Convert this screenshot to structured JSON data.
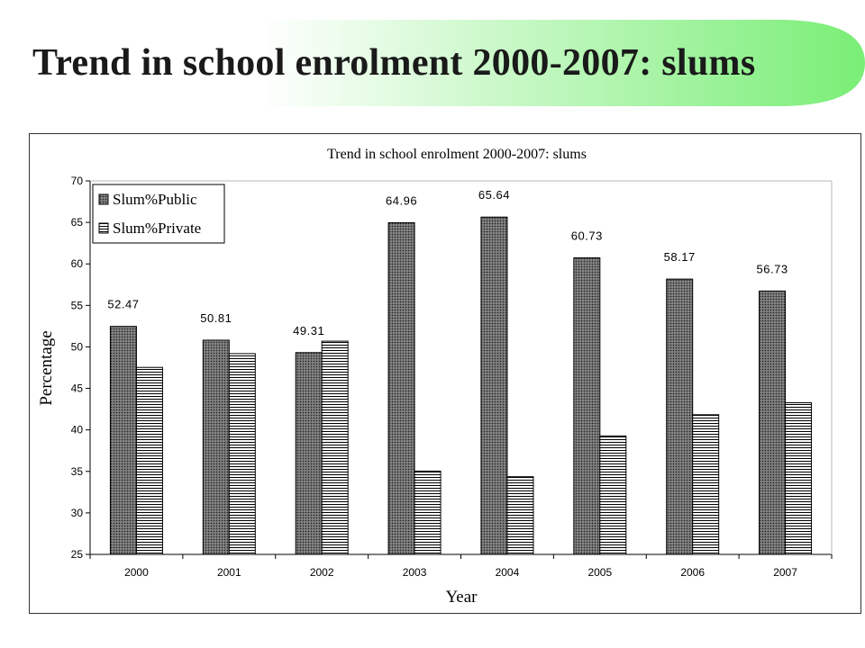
{
  "slide": {
    "title": "Trend in school enrolment 2000-2007: slums"
  },
  "colors": {
    "banner_start": "#ffffff",
    "banner_end": "#7ef07a",
    "bar_public": "#555555",
    "bar_private": "#ffffff",
    "plot_line": "#000000"
  },
  "chart_data": {
    "type": "bar",
    "title": "Trend in school enrolment 2000-2007: slums",
    "xlabel": "Year",
    "ylabel": "Percentage",
    "categories": [
      "2000",
      "2001",
      "2002",
      "2003",
      "2004",
      "2005",
      "2006",
      "2007"
    ],
    "ylim": [
      25,
      70
    ],
    "yticks": [
      25,
      30,
      35,
      40,
      45,
      50,
      55,
      60,
      65,
      70
    ],
    "grid": false,
    "legend_position": "top-left",
    "series": [
      {
        "name": "Slum%Public",
        "pattern": "dotted-dark",
        "values": [
          52.47,
          50.81,
          49.31,
          64.96,
          65.64,
          60.73,
          58.17,
          56.73
        ],
        "labels": [
          "52.47",
          "50.81",
          "49.31",
          "64.96",
          "65.64",
          "60.73",
          "58.17",
          "56.73"
        ]
      },
      {
        "name": "Slum%Private",
        "pattern": "horizontal-lines",
        "values": [
          47.53,
          49.19,
          50.69,
          35.04,
          34.36,
          39.27,
          41.83,
          43.27
        ]
      }
    ]
  }
}
